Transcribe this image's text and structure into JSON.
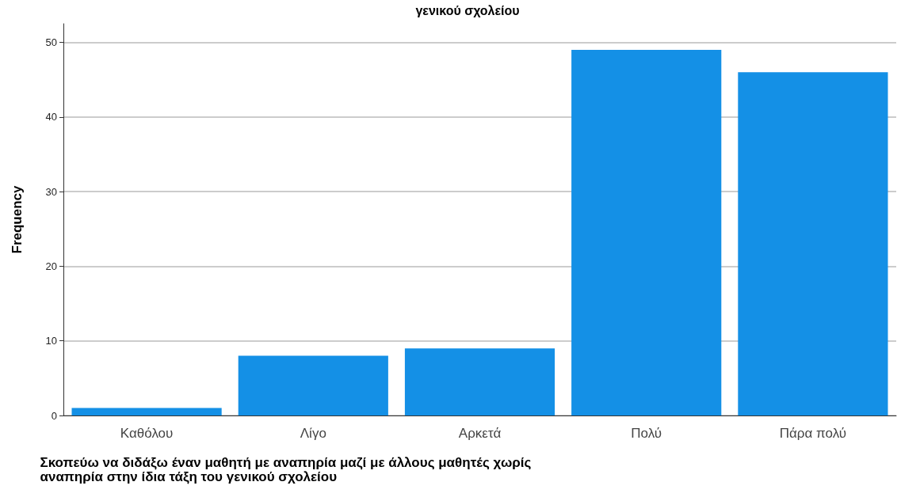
{
  "chart_data": {
    "type": "bar",
    "title": "γενικού σχολείου",
    "xlabel": "Σκοπεύω να διδάξω έναν μαθητή με αναπηρία μαζί με άλλους μαθητές χωρίς αναπηρία στην ίδια τάξη του γενικού σχολείου",
    "ylabel": "Frequency",
    "categories": [
      "Καθόλου",
      "Λίγο",
      "Αρκετά",
      "Πολύ",
      "Πάρα πολύ"
    ],
    "values": [
      1,
      8,
      9,
      49,
      46
    ],
    "color": "#1490e6",
    "ylim": [
      0,
      52.5
    ],
    "yticks": [
      0,
      10,
      20,
      30,
      40,
      50
    ],
    "grid": "y"
  }
}
